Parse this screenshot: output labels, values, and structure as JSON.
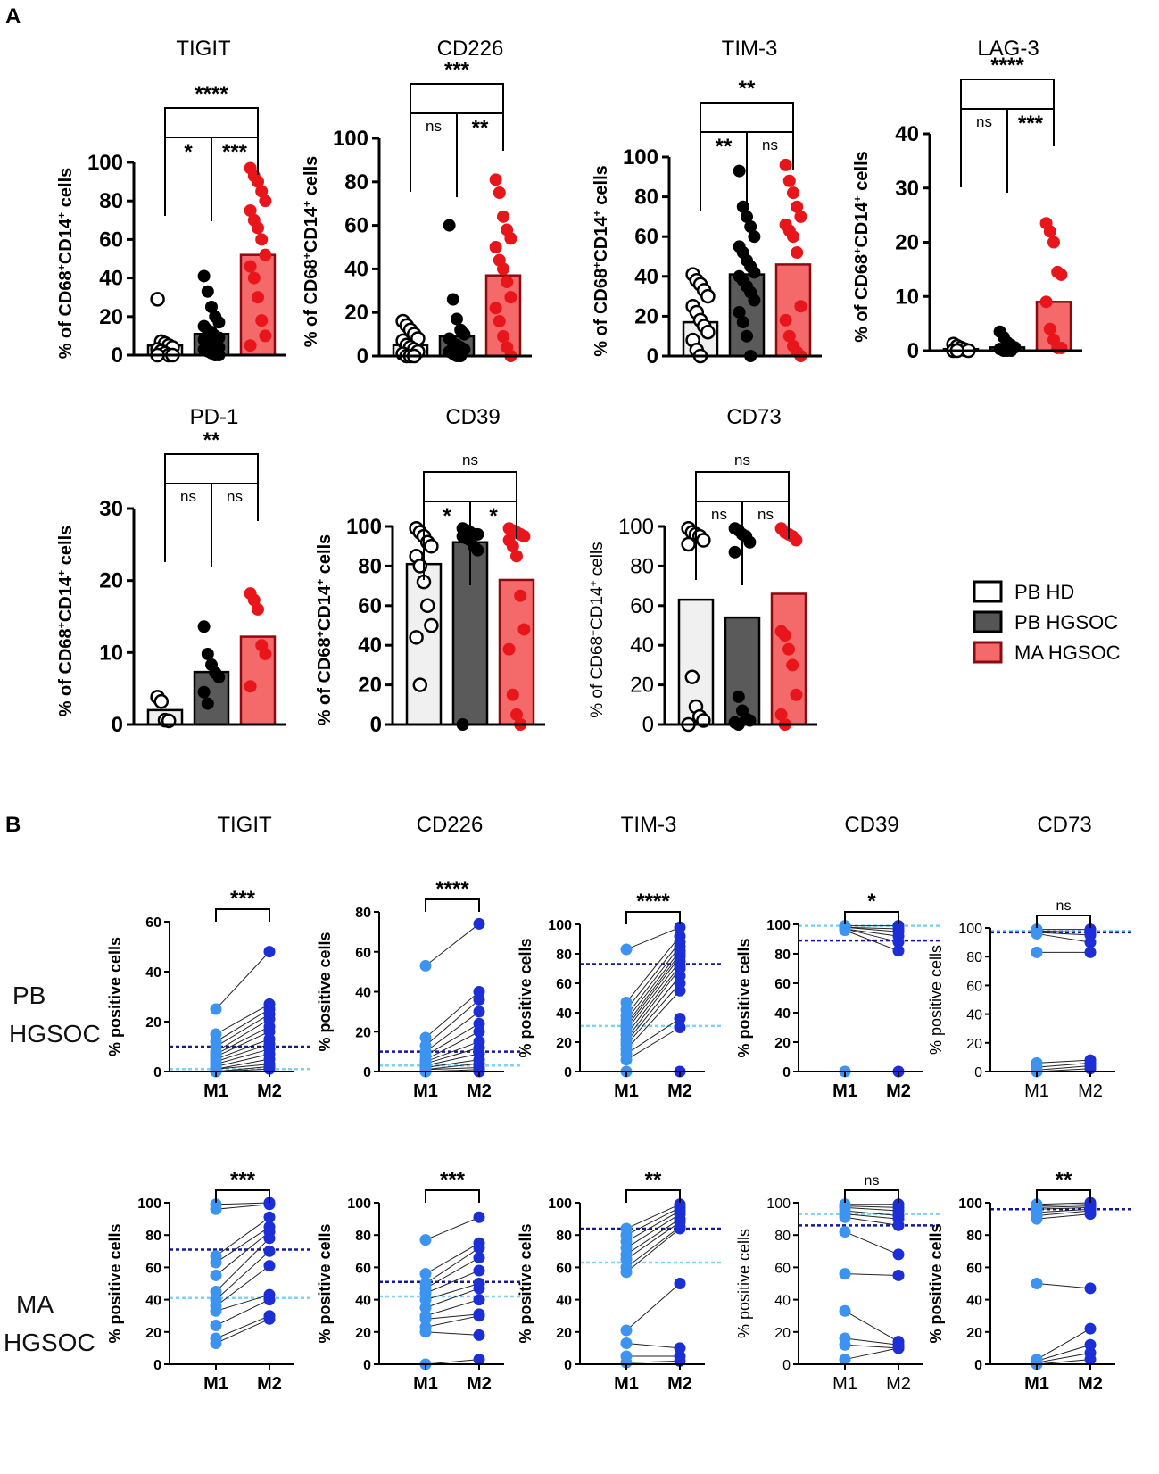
{
  "figure": {
    "panel_labels": [
      "A",
      "B"
    ],
    "row_labels": [
      "PB HGSOC",
      "MA HGSOC"
    ],
    "legend": [
      {
        "label": "PB HD",
        "color": "#ffffff"
      },
      {
        "label": "PB HGSOC",
        "color": "#555555"
      },
      {
        "label": "MA HGSOC",
        "color": "#f46a6a"
      }
    ],
    "colors": {
      "hd_fill": "#f0f0f0",
      "hgsoc_fill": "#5a5a5a",
      "ma_fill": "#f46a6a",
      "ma_dot": "#e8161b",
      "ma_edge": "#8b0b10",
      "m1_dot": "#3d94f0",
      "m2_dot": "#1c2fd6",
      "m1_line": "#7fd3f2",
      "m2_line": "#15189a"
    }
  },
  "chart_data": [
    {
      "id": "A-TIGIT",
      "type": "bar",
      "title": "TIGIT",
      "ylabel": "% of CD68+CD14+ cells",
      "ylim": [
        0,
        100
      ],
      "yticks": [
        0,
        20,
        40,
        60,
        80,
        100
      ],
      "categories": [
        "PB HD",
        "PB HGSOC",
        "MA HGSOC"
      ],
      "values": [
        5,
        11,
        52
      ],
      "points": [
        [
          29,
          7,
          6,
          5,
          4,
          3,
          2,
          1,
          0,
          0,
          0
        ],
        [
          41,
          33,
          25,
          20,
          17,
          15,
          13,
          12,
          10,
          9,
          8,
          7,
          6,
          5,
          4,
          3,
          2,
          1,
          0,
          0
        ],
        [
          97,
          93,
          90,
          85,
          80,
          75,
          70,
          66,
          60,
          52,
          46,
          40,
          30,
          18,
          10,
          5
        ]
      ],
      "sig": {
        "top": "****",
        "a": "*",
        "b": "***"
      }
    },
    {
      "id": "A-CD226",
      "type": "bar",
      "title": "CD226",
      "ylabel": "% of CD68+CD14+ cells",
      "ylim": [
        0,
        100
      ],
      "yticks": [
        0,
        20,
        40,
        60,
        80,
        100
      ],
      "categories": [
        "PB HD",
        "PB HGSOC",
        "MA HGSOC"
      ],
      "values": [
        5,
        9,
        37
      ],
      "points": [
        [
          16,
          14,
          12,
          10,
          8,
          7,
          5,
          4,
          3,
          2,
          1,
          0,
          0,
          0
        ],
        [
          60,
          26,
          17,
          12,
          10,
          8,
          6,
          5,
          4,
          3,
          2,
          1,
          0,
          0
        ],
        [
          81,
          75,
          64,
          58,
          54,
          50,
          44,
          40,
          34,
          27,
          22,
          16,
          9,
          4,
          0
        ]
      ],
      "sig": {
        "top": "***",
        "a": "ns",
        "b": "**"
      }
    },
    {
      "id": "A-TIM-3",
      "type": "bar",
      "title": "TIM-3",
      "ylabel": "% of CD68+CD14+ cells",
      "ylim": [
        0,
        100
      ],
      "yticks": [
        0,
        20,
        40,
        60,
        80,
        100
      ],
      "categories": [
        "PB HD",
        "PB HGSOC",
        "MA HGSOC"
      ],
      "values": [
        17,
        41,
        46
      ],
      "points": [
        [
          41,
          38,
          36,
          33,
          30,
          25,
          22,
          18,
          15,
          12,
          8,
          3,
          0
        ],
        [
          93,
          75,
          70,
          65,
          60,
          55,
          52,
          48,
          45,
          42,
          40,
          38,
          35,
          32,
          28,
          22,
          17,
          10,
          0
        ],
        [
          96,
          88,
          82,
          75,
          70,
          66,
          63,
          60,
          52,
          25,
          18,
          10,
          5,
          2,
          0
        ]
      ],
      "sig": {
        "top": "**",
        "a": "**",
        "b": "ns"
      }
    },
    {
      "id": "A-LAG-3",
      "type": "bar",
      "title": "LAG-3",
      "ylabel": "% of CD68+CD14+ cells",
      "ylim": [
        0,
        40
      ],
      "yticks": [
        0,
        10,
        20,
        30,
        40
      ],
      "categories": [
        "PB HD",
        "PB HGSOC",
        "MA HGSOC"
      ],
      "values": [
        0.3,
        0.6,
        9
      ],
      "points": [
        [
          1.2,
          0.8,
          0.5,
          0.2,
          0,
          0,
          0
        ],
        [
          3.5,
          2.5,
          1.5,
          1,
          0.6,
          0.3,
          0,
          0,
          0
        ],
        [
          23.5,
          22,
          20,
          14.5,
          14,
          9,
          4,
          2,
          0.5,
          0.5
        ]
      ],
      "sig": {
        "top": "****",
        "a": "ns",
        "b": "***"
      }
    },
    {
      "id": "A-PD-1",
      "type": "bar",
      "title": "PD-1",
      "ylabel": "% of CD68+CD14+ cells",
      "ylim": [
        0,
        30
      ],
      "yticks": [
        0,
        10,
        20,
        30
      ],
      "categories": [
        "PB HD",
        "PB HGSOC",
        "MA HGSOC"
      ],
      "values": [
        2,
        7.3,
        12.2
      ],
      "points": [
        [
          3.8,
          3.2,
          0.6,
          0.5
        ],
        [
          13.6,
          9.8,
          8.3,
          7.2,
          6.6,
          4.5,
          2.9
        ],
        [
          18.2,
          17.3,
          16,
          11,
          9.8,
          5.3
        ]
      ],
      "sig": {
        "top": "**",
        "a": "ns",
        "b": "ns"
      }
    },
    {
      "id": "A-CD39",
      "type": "bar",
      "title": "CD39",
      "ylabel": "% of CD68+CD14+ cells",
      "ylim": [
        0,
        100
      ],
      "yticks": [
        0,
        20,
        40,
        60,
        80,
        100
      ],
      "categories": [
        "PB HD",
        "PB HGSOC",
        "MA HGSOC"
      ],
      "values": [
        81,
        92,
        73
      ],
      "points": [
        [
          99,
          97,
          95,
          92,
          90,
          85,
          80,
          72,
          60,
          50,
          44,
          20
        ],
        [
          99,
          98,
          97,
          96,
          96,
          95,
          94,
          93,
          90,
          88,
          0
        ],
        [
          99,
          98,
          97,
          96,
          95,
          93,
          90,
          85,
          65,
          48,
          38,
          15,
          5,
          0
        ]
      ],
      "sig": {
        "top": "ns",
        "a": "*",
        "b": "*"
      }
    },
    {
      "id": "A-CD73",
      "type": "bar",
      "title": "CD73",
      "ylabel": "% of CD68+CD14+ cells",
      "ylim": [
        0,
        100
      ],
      "yticks": [
        0,
        20,
        40,
        60,
        80,
        100
      ],
      "categories": [
        "PB HD",
        "PB HGSOC",
        "MA HGSOC"
      ],
      "values": [
        63,
        54,
        66
      ],
      "points": [
        [
          99,
          97,
          96,
          95,
          93,
          91,
          24,
          9,
          4,
          2,
          0
        ],
        [
          99,
          98,
          96,
          95,
          92,
          87,
          14,
          7,
          3,
          2,
          1,
          0
        ],
        [
          99,
          97,
          96,
          95,
          93,
          47,
          45,
          38,
          30,
          15,
          5,
          0
        ]
      ],
      "sig": {
        "top": "ns",
        "a": "ns",
        "b": "ns"
      }
    },
    {
      "id": "B-PB-TIGIT",
      "type": "paired",
      "row": "PB HGSOC",
      "title": "TIGIT",
      "ylabel": "% positive cells",
      "xlabels": [
        "M1",
        "M2"
      ],
      "ylim": [
        0,
        60
      ],
      "yticks": [
        0,
        20,
        40,
        60
      ],
      "pairs": [
        [
          25,
          48
        ],
        [
          15,
          27
        ],
        [
          12,
          25
        ],
        [
          10,
          23
        ],
        [
          8,
          21
        ],
        [
          7,
          18
        ],
        [
          6,
          16
        ],
        [
          5,
          13
        ],
        [
          4,
          11
        ],
        [
          3,
          9
        ],
        [
          2,
          7
        ],
        [
          1,
          5
        ],
        [
          1,
          3
        ],
        [
          0,
          2
        ],
        [
          0,
          1
        ]
      ],
      "median_m1": 1,
      "median_m2": 10,
      "sig": "***"
    },
    {
      "id": "B-PB-CD226",
      "type": "paired",
      "row": "PB HGSOC",
      "title": "CD226",
      "ylabel": "% positive cells",
      "xlabels": [
        "M1",
        "M2"
      ],
      "ylim": [
        0,
        80
      ],
      "yticks": [
        0,
        20,
        40,
        60,
        80
      ],
      "pairs": [
        [
          53,
          74
        ],
        [
          17,
          40
        ],
        [
          13,
          36
        ],
        [
          10,
          30
        ],
        [
          8,
          24
        ],
        [
          6,
          20
        ],
        [
          5,
          15
        ],
        [
          4,
          12
        ],
        [
          3,
          9
        ],
        [
          2,
          6
        ],
        [
          1,
          4
        ],
        [
          1,
          2
        ],
        [
          0,
          1
        ],
        [
          0,
          0
        ]
      ],
      "median_m1": 3,
      "median_m2": 10,
      "sig": "****"
    },
    {
      "id": "B-PB-TIM-3",
      "type": "paired",
      "row": "PB HGSOC",
      "title": "TIM-3",
      "ylabel": "% positive cells",
      "xlabels": [
        "M1",
        "M2"
      ],
      "ylim": [
        0,
        100
      ],
      "yticks": [
        0,
        20,
        40,
        60,
        80,
        100
      ],
      "pairs": [
        [
          83,
          98
        ],
        [
          47,
          92
        ],
        [
          42,
          88
        ],
        [
          38,
          85
        ],
        [
          35,
          82
        ],
        [
          32,
          80
        ],
        [
          30,
          78
        ],
        [
          28,
          75
        ],
        [
          25,
          72
        ],
        [
          22,
          70
        ],
        [
          20,
          65
        ],
        [
          18,
          60
        ],
        [
          15,
          55
        ],
        [
          12,
          36
        ],
        [
          8,
          30
        ],
        [
          0,
          0
        ]
      ],
      "median_m1": 31,
      "median_m2": 73,
      "sig": "****"
    },
    {
      "id": "B-PB-CD39",
      "type": "paired",
      "row": "PB HGSOC",
      "title": "CD39",
      "ylabel": "% positive cells",
      "xlabels": [
        "M1",
        "M2"
      ],
      "ylim": [
        0,
        100
      ],
      "yticks": [
        0,
        20,
        40,
        60,
        80,
        100
      ],
      "pairs": [
        [
          99,
          99
        ],
        [
          98,
          97
        ],
        [
          98,
          95
        ],
        [
          97,
          92
        ],
        [
          97,
          88
        ],
        [
          96,
          82
        ],
        [
          0,
          0
        ]
      ],
      "median_m1": 99,
      "median_m2": 89,
      "sig": "*"
    },
    {
      "id": "B-PB-CD73",
      "type": "paired",
      "row": "PB HGSOC",
      "title": "CD73",
      "ylabel": "% positive cells",
      "xlabels": [
        "M1",
        "M2"
      ],
      "ylim": [
        0,
        100
      ],
      "yticks": [
        0,
        20,
        40,
        60,
        80,
        100
      ],
      "pairs": [
        [
          99,
          99
        ],
        [
          98,
          97
        ],
        [
          97,
          95
        ],
        [
          96,
          90
        ],
        [
          83,
          83
        ],
        [
          6,
          8
        ],
        [
          3,
          6
        ],
        [
          1,
          4
        ],
        [
          0,
          2
        ]
      ],
      "median_m1": 98,
      "median_m2": 97,
      "sig": "ns"
    },
    {
      "id": "B-MA-TIGIT",
      "type": "paired",
      "row": "MA HGSOC",
      "title": "TIGIT",
      "ylabel": "% positive cells",
      "xlabels": [
        "M1",
        "M2"
      ],
      "ylim": [
        0,
        100
      ],
      "yticks": [
        0,
        20,
        40,
        60,
        80,
        100
      ],
      "pairs": [
        [
          99,
          100
        ],
        [
          96,
          99
        ],
        [
          67,
          91
        ],
        [
          63,
          85
        ],
        [
          55,
          82
        ],
        [
          45,
          78
        ],
        [
          40,
          70
        ],
        [
          36,
          61
        ],
        [
          33,
          43
        ],
        [
          24,
          40
        ],
        [
          16,
          30
        ],
        [
          13,
          28
        ]
      ],
      "median_m1": 41,
      "median_m2": 71,
      "sig": "***"
    },
    {
      "id": "B-MA-CD226",
      "type": "paired",
      "row": "MA HGSOC",
      "title": "CD226",
      "ylabel": "% positive cells",
      "xlabels": [
        "M1",
        "M2"
      ],
      "ylim": [
        0,
        100
      ],
      "yticks": [
        0,
        20,
        40,
        60,
        80,
        100
      ],
      "pairs": [
        [
          77,
          91
        ],
        [
          56,
          75
        ],
        [
          50,
          72
        ],
        [
          47,
          66
        ],
        [
          44,
          58
        ],
        [
          40,
          50
        ],
        [
          35,
          47
        ],
        [
          30,
          40
        ],
        [
          28,
          31
        ],
        [
          23,
          30
        ],
        [
          20,
          18
        ],
        [
          0,
          3
        ]
      ],
      "median_m1": 42,
      "median_m2": 51,
      "sig": "***"
    },
    {
      "id": "B-MA-TIM-3",
      "type": "paired",
      "row": "MA HGSOC",
      "title": "TIM-3",
      "ylabel": "% positive cells",
      "xlabels": [
        "M1",
        "M2"
      ],
      "ylim": [
        0,
        100
      ],
      "yticks": [
        0,
        20,
        40,
        60,
        80,
        100
      ],
      "pairs": [
        [
          84,
          99
        ],
        [
          80,
          97
        ],
        [
          76,
          95
        ],
        [
          72,
          93
        ],
        [
          68,
          90
        ],
        [
          65,
          88
        ],
        [
          60,
          85
        ],
        [
          57,
          84
        ],
        [
          21,
          50
        ],
        [
          13,
          10
        ],
        [
          5,
          5
        ],
        [
          1,
          2
        ]
      ],
      "median_m1": 63,
      "median_m2": 84,
      "sig": "**"
    },
    {
      "id": "B-MA-CD39",
      "type": "paired",
      "row": "MA HGSOC",
      "title": "CD39",
      "ylabel": "% positive cells",
      "xlabels": [
        "M1",
        "M2"
      ],
      "ylim": [
        0,
        100
      ],
      "yticks": [
        0,
        20,
        40,
        60,
        80,
        100
      ],
      "pairs": [
        [
          99,
          99
        ],
        [
          98,
          97
        ],
        [
          97,
          95
        ],
        [
          95,
          92
        ],
        [
          93,
          90
        ],
        [
          91,
          86
        ],
        [
          82,
          68
        ],
        [
          56,
          55
        ],
        [
          33,
          14
        ],
        [
          16,
          12
        ],
        [
          12,
          10
        ],
        [
          3,
          10
        ]
      ],
      "median_m1": 93,
      "median_m2": 86,
      "sig": "ns"
    },
    {
      "id": "B-MA-CD73",
      "type": "paired",
      "row": "MA HGSOC",
      "title": "CD73",
      "ylabel": "% positive cells",
      "xlabels": [
        "M1",
        "M2"
      ],
      "ylim": [
        0,
        100
      ],
      "yticks": [
        0,
        20,
        40,
        60,
        80,
        100
      ],
      "pairs": [
        [
          99,
          100
        ],
        [
          98,
          99
        ],
        [
          97,
          98
        ],
        [
          96,
          97
        ],
        [
          94,
          96
        ],
        [
          92,
          95
        ],
        [
          90,
          93
        ],
        [
          50,
          47
        ],
        [
          3,
          22
        ],
        [
          2,
          12
        ],
        [
          1,
          7
        ],
        [
          0,
          3
        ]
      ],
      "median_m1": 96,
      "median_m2": 96,
      "sig": "**"
    }
  ]
}
